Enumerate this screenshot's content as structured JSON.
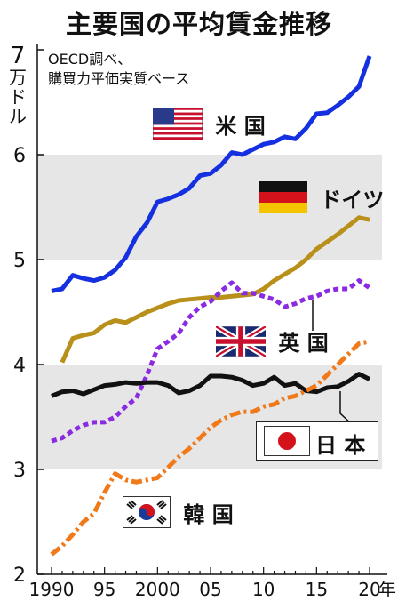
{
  "title": "主要国の平均賃金推移",
  "source_note": [
    "OECD調べ、",
    "購買力平価実質ベース"
  ],
  "y_unit": "7万ドル",
  "x_unit": "年",
  "colors": {
    "us": "#1530e0",
    "de": "#b8901a",
    "uk": "#8a2be2",
    "jp": "#111111",
    "kr": "#f07a1a",
    "band": "#e6e6e6"
  },
  "chart_data": {
    "type": "line",
    "title": "主要国の平均賃金推移",
    "ylabel": "万ドル",
    "xlabel": "年",
    "ylim": [
      2,
      7
    ],
    "xlim": [
      1990,
      2020
    ],
    "y_ticks": [
      "2",
      "3",
      "4",
      "5",
      "6"
    ],
    "x_ticks": [
      "1990",
      "95",
      "2000",
      "05",
      "10",
      "15",
      "20"
    ],
    "grid": "shaded bands 3-4 and 5-6",
    "series": [
      {
        "name": "米 国",
        "key": "us",
        "style": "solid",
        "x": [
          1990,
          1991,
          1992,
          1993,
          1994,
          1995,
          1996,
          1997,
          1998,
          1999,
          2000,
          2001,
          2002,
          2003,
          2004,
          2005,
          2006,
          2007,
          2008,
          2009,
          2010,
          2011,
          2012,
          2013,
          2014,
          2015,
          2016,
          2017,
          2018,
          2019,
          2020
        ],
        "y": [
          4.7,
          4.72,
          4.85,
          4.82,
          4.8,
          4.83,
          4.9,
          5.02,
          5.22,
          5.35,
          5.55,
          5.58,
          5.62,
          5.68,
          5.8,
          5.82,
          5.9,
          6.02,
          6.0,
          6.05,
          6.1,
          6.12,
          6.17,
          6.15,
          6.25,
          6.39,
          6.4,
          6.47,
          6.55,
          6.65,
          6.94
        ]
      },
      {
        "name": "ドイツ",
        "key": "de",
        "style": "solid",
        "x": [
          1991,
          1992,
          1993,
          1994,
          1995,
          1996,
          1997,
          1998,
          1999,
          2000,
          2001,
          2002,
          2003,
          2004,
          2005,
          2006,
          2007,
          2008,
          2009,
          2010,
          2011,
          2012,
          2013,
          2014,
          2015,
          2016,
          2017,
          2018,
          2019,
          2020
        ],
        "y": [
          4.02,
          4.25,
          4.28,
          4.3,
          4.38,
          4.42,
          4.4,
          4.45,
          4.5,
          4.54,
          4.58,
          4.61,
          4.62,
          4.63,
          4.64,
          4.64,
          4.65,
          4.66,
          4.67,
          4.72,
          4.8,
          4.86,
          4.92,
          5.0,
          5.1,
          5.17,
          5.24,
          5.32,
          5.4,
          5.38
        ]
      },
      {
        "name": "英 国",
        "key": "uk",
        "style": "dashed",
        "x": [
          1990,
          1991,
          1992,
          1993,
          1994,
          1995,
          1996,
          1997,
          1998,
          1999,
          2000,
          2001,
          2002,
          2003,
          2004,
          2005,
          2006,
          2007,
          2008,
          2009,
          2010,
          2011,
          2012,
          2013,
          2014,
          2015,
          2016,
          2017,
          2018,
          2019,
          2020
        ],
        "y": [
          3.27,
          3.3,
          3.37,
          3.42,
          3.45,
          3.45,
          3.5,
          3.6,
          3.68,
          3.9,
          4.15,
          4.22,
          4.3,
          4.45,
          4.55,
          4.6,
          4.7,
          4.78,
          4.68,
          4.68,
          4.65,
          4.62,
          4.55,
          4.58,
          4.63,
          4.65,
          4.7,
          4.72,
          4.72,
          4.8,
          4.73
        ]
      },
      {
        "name": "日 本",
        "key": "jp",
        "style": "solid",
        "x": [
          1990,
          1991,
          1992,
          1993,
          1994,
          1995,
          1996,
          1997,
          1998,
          1999,
          2000,
          2001,
          2002,
          2003,
          2004,
          2005,
          2006,
          2007,
          2008,
          2009,
          2010,
          2011,
          2012,
          2013,
          2014,
          2015,
          2016,
          2017,
          2018,
          2019,
          2020
        ],
        "y": [
          3.7,
          3.74,
          3.75,
          3.72,
          3.76,
          3.8,
          3.81,
          3.83,
          3.82,
          3.83,
          3.83,
          3.8,
          3.73,
          3.75,
          3.8,
          3.89,
          3.89,
          3.88,
          3.85,
          3.8,
          3.82,
          3.88,
          3.8,
          3.82,
          3.75,
          3.74,
          3.78,
          3.79,
          3.84,
          3.91,
          3.86
        ]
      },
      {
        "name": "韓 国",
        "key": "kr",
        "style": "dashdot",
        "x": [
          1990,
          1991,
          1992,
          1993,
          1994,
          1995,
          1996,
          1997,
          1998,
          1999,
          2000,
          2001,
          2002,
          2003,
          2004,
          2005,
          2006,
          2007,
          2008,
          2009,
          2010,
          2011,
          2012,
          2013,
          2014,
          2015,
          2016,
          2017,
          2018,
          2019,
          2020
        ],
        "y": [
          2.19,
          2.27,
          2.38,
          2.5,
          2.58,
          2.78,
          2.96,
          2.9,
          2.88,
          2.9,
          2.92,
          3.02,
          3.12,
          3.2,
          3.3,
          3.4,
          3.47,
          3.52,
          3.55,
          3.55,
          3.6,
          3.62,
          3.68,
          3.7,
          3.75,
          3.8,
          3.9,
          4.0,
          4.1,
          4.2,
          4.22
        ]
      }
    ]
  }
}
